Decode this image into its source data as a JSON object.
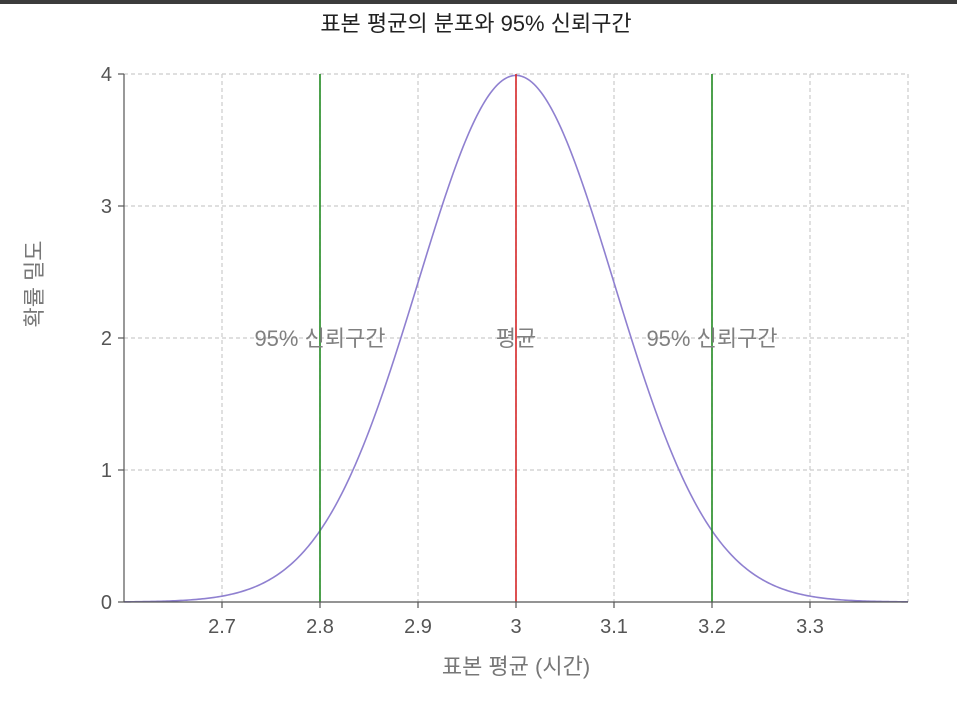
{
  "chart_data": {
    "type": "line",
    "title": "표본 평균의 분포와 95% 신뢰구간",
    "xlabel": "표본 평균 (시간)",
    "ylabel": "확률 밀도",
    "xlim": [
      2.6,
      3.4
    ],
    "ylim": [
      0,
      4
    ],
    "x_ticks": [
      2.7,
      2.8,
      2.9,
      3,
      3.1,
      3.2,
      3.3
    ],
    "x_tick_labels": [
      "2.7",
      "2.8",
      "2.9",
      "3",
      "3.1",
      "3.2",
      "3.3"
    ],
    "y_ticks": [
      0,
      1,
      2,
      3,
      4
    ],
    "y_tick_labels": [
      "0",
      "1",
      "2",
      "3",
      "4"
    ],
    "grid": true,
    "series": [
      {
        "kind": "normal-density",
        "mean": 3.0,
        "sd": 0.1,
        "color": "#8f80d0",
        "x": [
          2.6,
          2.62,
          2.64,
          2.66,
          2.68,
          2.7,
          2.72,
          2.74,
          2.76,
          2.78,
          2.8,
          2.82,
          2.84,
          2.86,
          2.88,
          2.9,
          2.92,
          2.94,
          2.96,
          2.98,
          3.0,
          3.02,
          3.04,
          3.06,
          3.08,
          3.1,
          3.12,
          3.14,
          3.16,
          3.18,
          3.2,
          3.22,
          3.24,
          3.26,
          3.28,
          3.3,
          3.32,
          3.34,
          3.36,
          3.38,
          3.4
        ],
        "y": [
          0.0013,
          0.0028,
          0.0061,
          0.0122,
          0.0238,
          0.0443,
          0.079,
          0.1354,
          0.2218,
          0.3475,
          0.5399,
          0.7895,
          1.1092,
          1.4973,
          1.9419,
          2.4197,
          2.8969,
          3.3322,
          3.6827,
          3.9104,
          3.9894,
          3.9104,
          3.6827,
          3.3322,
          2.8969,
          2.4197,
          1.9419,
          1.4973,
          1.1092,
          0.7895,
          0.5399,
          0.3475,
          0.2218,
          0.1354,
          0.079,
          0.0443,
          0.0238,
          0.0122,
          0.0061,
          0.0028,
          0.0013
        ]
      }
    ],
    "vlines": [
      {
        "x": 2.8,
        "color": "#228b22",
        "label": "95% 신뢰구간"
      },
      {
        "x": 3.0,
        "color": "#d62728",
        "label": "평균"
      },
      {
        "x": 3.2,
        "color": "#228b22",
        "label": "95% 신뢰구간"
      }
    ],
    "annotation_y": 2
  }
}
